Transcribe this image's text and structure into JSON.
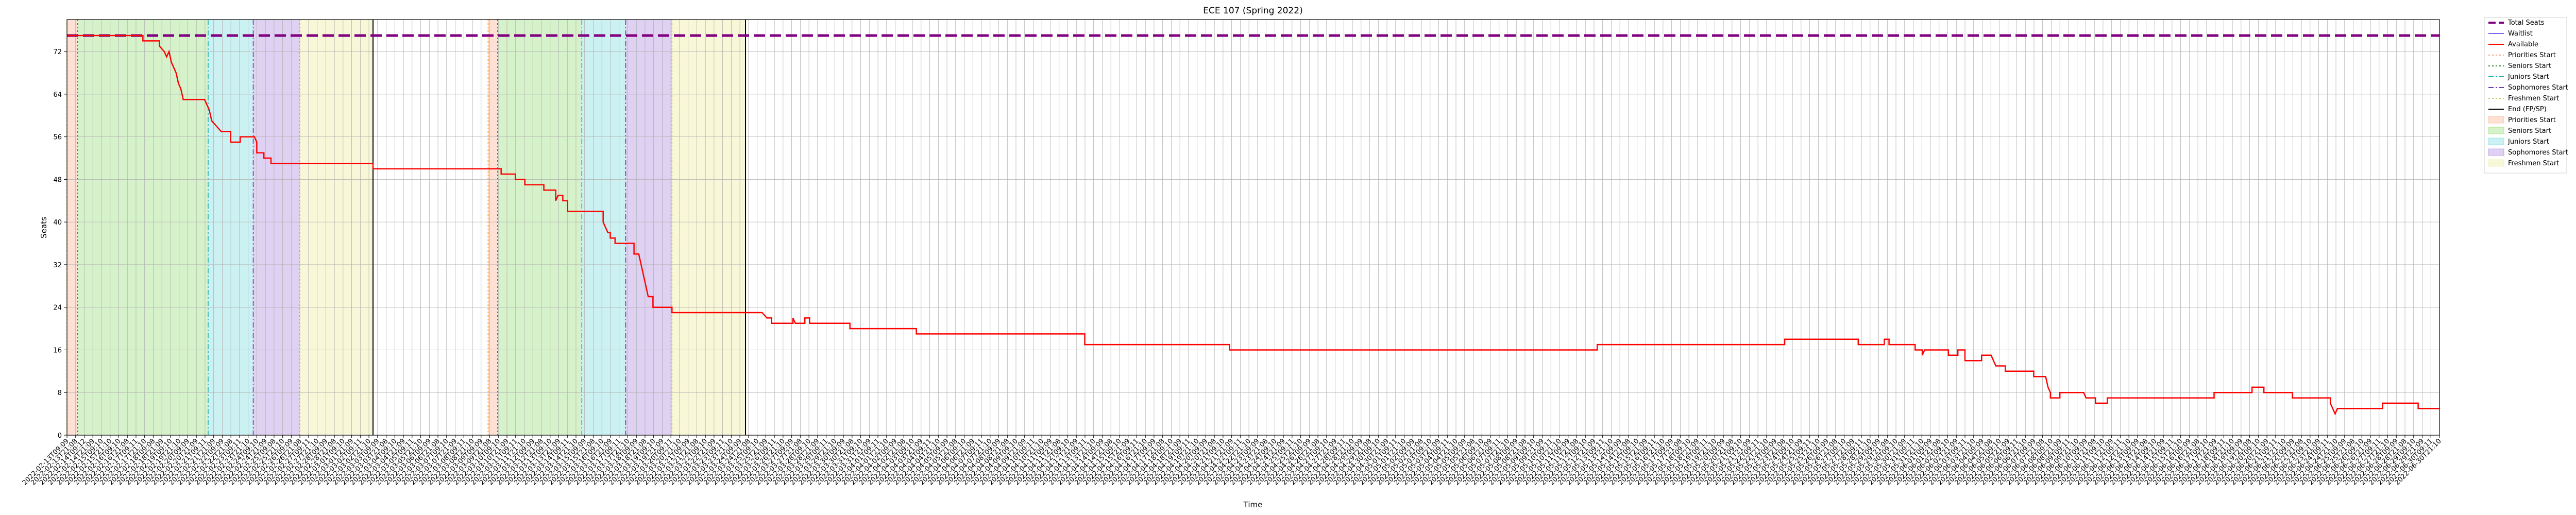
{
  "chart_data": {
    "type": "line",
    "title": "ECE 107 (Spring 2022)",
    "xlabel": "Time",
    "ylabel": "Seats",
    "xlim": [
      0,
      100
    ],
    "ylim": [
      0,
      78
    ],
    "yticks": [
      0,
      8,
      16,
      24,
      32,
      40,
      48,
      56,
      64,
      72
    ],
    "grid": true,
    "legend_placement": "outside-top-right",
    "colors": {
      "total": "#800080",
      "waitlist": "#7b68ee",
      "available": "#ff0000",
      "priorities": "#ffa07a",
      "seniors": "#7fd85a",
      "juniors": "#5fd3d8",
      "sophomores": "#9b6fd8",
      "freshmen": "#e8e88a",
      "end": "#000000"
    },
    "legend": [
      {
        "label": "Total Seats",
        "kind": "line",
        "color": "#800080",
        "dash": "dashed"
      },
      {
        "label": "Waitlist",
        "kind": "line",
        "color": "#7b68ee",
        "dash": "solid"
      },
      {
        "label": "Available",
        "kind": "line",
        "color": "#ff0000",
        "dash": "solid"
      },
      {
        "label": "Priorities Start",
        "kind": "line",
        "color": "#ffa07a",
        "dash": "dotted"
      },
      {
        "label": "Seniors Start",
        "kind": "line",
        "color": "#2e8b2e",
        "dash": "dotted"
      },
      {
        "label": "Juniors Start",
        "kind": "line",
        "color": "#20b2aa",
        "dash": "dashdot"
      },
      {
        "label": "Sophomores Start",
        "kind": "line",
        "color": "#6a3db8",
        "dash": "dashdot"
      },
      {
        "label": "Freshmen Start",
        "kind": "line",
        "color": "#c8c86a",
        "dash": "dotted"
      },
      {
        "label": "End (FP/SP)",
        "kind": "line",
        "color": "#000000",
        "dash": "solid"
      },
      {
        "label": "Priorities Start",
        "kind": "patch",
        "color": "#ffa07a"
      },
      {
        "label": "Seniors Start",
        "kind": "patch",
        "color": "#7fd85a"
      },
      {
        "label": "Juniors Start",
        "kind": "patch",
        "color": "#5fd3d8"
      },
      {
        "label": "Sophomores Start",
        "kind": "patch",
        "color": "#9b6fd8"
      },
      {
        "label": "Freshmen Start",
        "kind": "patch",
        "color": "#e8e88a"
      }
    ],
    "period_spans": [
      {
        "phase": "priorities",
        "x0": 0.0,
        "x1": 0.45
      },
      {
        "phase": "seniors",
        "x0": 0.45,
        "x1": 5.95
      },
      {
        "phase": "juniors",
        "x0": 5.95,
        "x1": 7.85
      },
      {
        "phase": "sophomores",
        "x0": 7.85,
        "x1": 9.8
      },
      {
        "phase": "freshmen",
        "x0": 9.8,
        "x1": 12.9
      },
      {
        "phase": "priorities",
        "x0": 17.75,
        "x1": 18.15
      },
      {
        "phase": "seniors",
        "x0": 18.15,
        "x1": 21.7
      },
      {
        "phase": "juniors",
        "x0": 21.7,
        "x1": 23.55
      },
      {
        "phase": "sophomores",
        "x0": 23.55,
        "x1": 25.5
      },
      {
        "phase": "freshmen",
        "x0": 25.5,
        "x1": 28.6
      }
    ],
    "end_lines": [
      12.9,
      28.6
    ],
    "series": [
      {
        "name": "Total Seats",
        "values": [
          [
            0,
            75
          ],
          [
            100,
            75
          ]
        ]
      },
      {
        "name": "Available",
        "values": [
          [
            0,
            75
          ],
          [
            3.2,
            75
          ],
          [
            3.2,
            74
          ],
          [
            3.9,
            74
          ],
          [
            3.9,
            73
          ],
          [
            4.1,
            72
          ],
          [
            4.2,
            71
          ],
          [
            4.3,
            72
          ],
          [
            4.4,
            70
          ],
          [
            4.5,
            69
          ],
          [
            4.6,
            68
          ],
          [
            4.7,
            66
          ],
          [
            4.8,
            65
          ],
          [
            4.9,
            63
          ],
          [
            5.8,
            63
          ],
          [
            5.9,
            62
          ],
          [
            6.0,
            61
          ],
          [
            6.1,
            59
          ],
          [
            6.3,
            58
          ],
          [
            6.5,
            57
          ],
          [
            6.9,
            57
          ],
          [
            6.9,
            55
          ],
          [
            7.3,
            55
          ],
          [
            7.3,
            56
          ],
          [
            7.9,
            56
          ],
          [
            8.0,
            55
          ],
          [
            8.0,
            53
          ],
          [
            8.3,
            53
          ],
          [
            8.3,
            52
          ],
          [
            8.6,
            52
          ],
          [
            8.6,
            51
          ],
          [
            12.9,
            51
          ],
          [
            12.9,
            50
          ],
          [
            17.8,
            50
          ],
          [
            18.3,
            50
          ],
          [
            18.3,
            49
          ],
          [
            18.9,
            49
          ],
          [
            18.9,
            48
          ],
          [
            19.3,
            48
          ],
          [
            19.3,
            47
          ],
          [
            20.1,
            47
          ],
          [
            20.1,
            46
          ],
          [
            20.6,
            46
          ],
          [
            20.6,
            44
          ],
          [
            20.7,
            45
          ],
          [
            20.9,
            45
          ],
          [
            20.9,
            44
          ],
          [
            21.1,
            44
          ],
          [
            21.1,
            42
          ],
          [
            22.6,
            42
          ],
          [
            22.6,
            40
          ],
          [
            22.8,
            38
          ],
          [
            22.9,
            38
          ],
          [
            22.9,
            37
          ],
          [
            23.1,
            37
          ],
          [
            23.1,
            36
          ],
          [
            23.5,
            36
          ],
          [
            23.9,
            36
          ],
          [
            23.9,
            34
          ],
          [
            24.1,
            34
          ],
          [
            24.2,
            32
          ],
          [
            24.3,
            30
          ],
          [
            24.4,
            28
          ],
          [
            24.5,
            26
          ],
          [
            24.7,
            26
          ],
          [
            24.7,
            24
          ],
          [
            25.5,
            24
          ],
          [
            25.5,
            23
          ],
          [
            29.3,
            23
          ],
          [
            29.5,
            22
          ],
          [
            29.7,
            22
          ],
          [
            29.7,
            21
          ],
          [
            30.6,
            21
          ],
          [
            30.6,
            22
          ],
          [
            30.7,
            21
          ],
          [
            31.1,
            21
          ],
          [
            31.1,
            22
          ],
          [
            31.3,
            22
          ],
          [
            31.3,
            21
          ],
          [
            33.0,
            21
          ],
          [
            33.0,
            20
          ],
          [
            35.8,
            20
          ],
          [
            35.8,
            19
          ],
          [
            42.9,
            19
          ],
          [
            42.9,
            17
          ],
          [
            49.0,
            17
          ],
          [
            49.0,
            16
          ],
          [
            64.5,
            16
          ],
          [
            64.5,
            17
          ],
          [
            72.4,
            17
          ],
          [
            72.4,
            18
          ],
          [
            75.5,
            18
          ],
          [
            75.5,
            17
          ],
          [
            76.6,
            17
          ],
          [
            76.6,
            18
          ],
          [
            76.8,
            18
          ],
          [
            76.8,
            17
          ],
          [
            77.9,
            17
          ],
          [
            77.9,
            16
          ],
          [
            78.2,
            16
          ],
          [
            78.2,
            15
          ],
          [
            78.3,
            16
          ],
          [
            79.3,
            16
          ],
          [
            79.3,
            15
          ],
          [
            79.7,
            15
          ],
          [
            79.7,
            16
          ],
          [
            80.0,
            16
          ],
          [
            80.0,
            14
          ],
          [
            80.7,
            14
          ],
          [
            80.7,
            15
          ],
          [
            81.1,
            15
          ],
          [
            81.2,
            14
          ],
          [
            81.3,
            13
          ],
          [
            81.7,
            13
          ],
          [
            81.7,
            12
          ],
          [
            82.9,
            12
          ],
          [
            82.9,
            11
          ],
          [
            83.4,
            11
          ],
          [
            83.5,
            9
          ],
          [
            83.6,
            8
          ],
          [
            83.6,
            7
          ],
          [
            84.0,
            7
          ],
          [
            84.0,
            8
          ],
          [
            85.0,
            8
          ],
          [
            85.1,
            7
          ],
          [
            85.5,
            7
          ],
          [
            85.5,
            6
          ],
          [
            86.0,
            6
          ],
          [
            86.0,
            7
          ],
          [
            90.5,
            7
          ],
          [
            90.5,
            8
          ],
          [
            92.1,
            8
          ],
          [
            92.1,
            9
          ],
          [
            92.6,
            9
          ],
          [
            92.6,
            8
          ],
          [
            93.8,
            8
          ],
          [
            93.8,
            7
          ],
          [
            95.4,
            7
          ],
          [
            95.4,
            6
          ],
          [
            95.5,
            5
          ],
          [
            95.6,
            4
          ],
          [
            95.7,
            5
          ],
          [
            97.6,
            5
          ],
          [
            97.6,
            6
          ],
          [
            99.1,
            6
          ],
          [
            99.1,
            5
          ],
          [
            100,
            5
          ]
        ]
      }
    ],
    "x_tick_labels": [
      "2022-02-13T09:09",
      "2022-02-13T21:08",
      "2022-02-14T09:12",
      "2022-02-14T21:09",
      "2022-02-15T09:10",
      "2022-02-15T21:10",
      "2022-02-16T09:10",
      "2022-02-16T21:08",
      "2022-02-17T09:11",
      "2022-02-17T21:10",
      "2022-02-18T09:08",
      "2022-02-18T21:09",
      "2022-02-19T09:10",
      "2022-02-19T21:10",
      "2022-02-20T09:09",
      "2022-02-20T21:09",
      "2022-02-21T09:11",
      "2022-02-21T21:09",
      "2022-02-22T09:09",
      "2022-02-22T21:08",
      "2022-02-23T09:11",
      "2022-02-23T21:10",
      "2022-02-24T09:10",
      "2022-02-24T21:09",
      "2022-02-25T09:08",
      "2022-02-25T21:10",
      "2022-02-26T09:09",
      "2022-02-26T21:08",
      "2022-02-27T09:11",
      "2022-02-27T21:10",
      "2022-02-28T09:09",
      "2022-02-28T21:08",
      "2022-03-01T09:10",
      "2022-03-01T21:09",
      "2022-03-02T09:11",
      "2022-03-02T21:10",
      "2022-03-03T09:09",
      "2022-03-03T21:08",
      "2022-03-04T09:10",
      "2022-03-04T21:09",
      "2022-03-05T09:11",
      "2022-03-05T21:10",
      "2022-03-06T09:09",
      "2022-03-06T21:08",
      "2022-03-07T09:10",
      "2022-03-07T21:09",
      "2022-03-08T09:11",
      "2022-03-08T21:10",
      "2022-03-09T09:09",
      "2022-03-09T21:08",
      "2022-03-10T09:10",
      "2022-03-10T21:09",
      "2022-03-11T09:11",
      "2022-03-11T21:10",
      "2022-03-12T09:09",
      "2022-03-12T21:08",
      "2022-03-13T09:10",
      "2022-03-13T21:09",
      "2022-03-14T09:11",
      "2022-03-14T21:10",
      "2022-03-15T09:09",
      "2022-03-15T21:08",
      "2022-03-16T09:10",
      "2022-03-16T21:09",
      "2022-03-17T09:11",
      "2022-03-17T21:10",
      "2022-03-18T09:09",
      "2022-03-18T21:08",
      "2022-03-19T09:10",
      "2022-03-19T21:09",
      "2022-03-20T09:11",
      "2022-03-20T21:10",
      "2022-03-21T09:09",
      "2022-03-21T21:08",
      "2022-03-22T09:10",
      "2022-03-22T21:09",
      "2022-03-23T09:11",
      "2022-03-23T21:10",
      "2022-03-24T09:09",
      "2022-03-24T21:08",
      "2022-03-25T09:10",
      "2022-03-25T21:09",
      "2022-03-26T09:11",
      "2022-03-26T21:10",
      "2022-03-27T09:09",
      "2022-03-27T21:08",
      "2022-03-28T09:10",
      "2022-03-28T21:09",
      "2022-03-29T09:11",
      "2022-03-29T21:10",
      "2022-03-30T09:09",
      "2022-03-30T21:08",
      "2022-03-31T09:10",
      "2022-03-31T21:09",
      "2022-04-01T09:11",
      "2022-04-01T21:10",
      "2022-04-02T09:09",
      "2022-04-02T21:08",
      "2022-04-03T09:10",
      "2022-04-03T21:09",
      "2022-04-04T09:11",
      "2022-04-04T21:10",
      "2022-04-05T09:09",
      "2022-04-05T21:08",
      "2022-04-06T09:10",
      "2022-04-06T21:09",
      "2022-04-07T09:11",
      "2022-04-07T21:10",
      "2022-04-08T09:09",
      "2022-04-08T21:08",
      "2022-04-09T09:10",
      "2022-04-09T21:09",
      "2022-04-10T09:11",
      "2022-04-10T21:10",
      "2022-04-11T09:09",
      "2022-04-11T21:08",
      "2022-04-12T09:10",
      "2022-04-12T21:09",
      "2022-04-13T09:11",
      "2022-04-13T21:10",
      "2022-04-14T09:09",
      "2022-04-14T21:08",
      "2022-04-15T09:10",
      "2022-04-15T21:09",
      "2022-04-16T09:11",
      "2022-04-16T21:10",
      "2022-04-17T09:09",
      "2022-04-17T21:08",
      "2022-04-18T09:10",
      "2022-04-18T21:09",
      "2022-04-19T09:11",
      "2022-04-19T21:10",
      "2022-04-20T09:09",
      "2022-04-20T21:08",
      "2022-04-21T09:10",
      "2022-04-21T21:09",
      "2022-04-22T09:11",
      "2022-04-22T21:10",
      "2022-04-23T09:09",
      "2022-04-23T21:08",
      "2022-04-24T09:10",
      "2022-04-24T21:09",
      "2022-04-25T09:11",
      "2022-04-25T21:10",
      "2022-04-26T09:09",
      "2022-04-26T21:08",
      "2022-04-27T09:10",
      "2022-04-27T21:09",
      "2022-04-28T09:11",
      "2022-04-28T21:10",
      "2022-04-29T09:09",
      "2022-04-29T21:08",
      "2022-04-30T09:10",
      "2022-04-30T21:09",
      "2022-05-01T09:11",
      "2022-05-01T21:10",
      "2022-05-02T09:09",
      "2022-05-02T21:08",
      "2022-05-03T09:10",
      "2022-05-03T21:09",
      "2022-05-04T09:11",
      "2022-05-04T21:10",
      "2022-05-05T09:09",
      "2022-05-05T21:08",
      "2022-05-06T09:10",
      "2022-05-06T21:09",
      "2022-05-07T09:11",
      "2022-05-07T21:10",
      "2022-05-08T09:09",
      "2022-05-08T21:08",
      "2022-05-09T09:10",
      "2022-05-09T21:09",
      "2022-05-10T09:11",
      "2022-05-10T21:10",
      "2022-05-11T09:09",
      "2022-05-11T21:08",
      "2022-05-12T09:10",
      "2022-05-12T21:09",
      "2022-05-13T09:11",
      "2022-05-13T21:10",
      "2022-05-14T09:09",
      "2022-05-14T21:08",
      "2022-05-15T09:10",
      "2022-05-15T21:09",
      "2022-05-16T09:11",
      "2022-05-16T21:10",
      "2022-05-17T09:09",
      "2022-05-17T21:08",
      "2022-05-18T09:10",
      "2022-05-18T21:09",
      "2022-05-19T09:11",
      "2022-05-19T21:10",
      "2022-05-20T09:09",
      "2022-05-20T21:08",
      "2022-05-21T09:10",
      "2022-05-21T21:09",
      "2022-05-22T09:11",
      "2022-05-22T21:10",
      "2022-05-23T09:09",
      "2022-05-23T21:08",
      "2022-05-24T09:10",
      "2022-05-24T21:09",
      "2022-05-25T09:11",
      "2022-05-25T21:10",
      "2022-05-26T09:09",
      "2022-05-26T21:08",
      "2022-05-27T09:10",
      "2022-05-27T21:09",
      "2022-05-28T09:11",
      "2022-05-28T21:10",
      "2022-05-29T09:09",
      "2022-05-29T21:08",
      "2022-05-30T09:10",
      "2022-05-30T21:09",
      "2022-05-31T09:11",
      "2022-05-31T21:10",
      "2022-06-01T09:09",
      "2022-06-01T21:08",
      "2022-06-02T09:10",
      "2022-06-02T21:09",
      "2022-06-03T09:11",
      "2022-06-03T21:10",
      "2022-06-04T09:09",
      "2022-06-04T21:08",
      "2022-06-05T09:10",
      "2022-06-05T21:09",
      "2022-06-06T09:11",
      "2022-06-06T21:10",
      "2022-06-07T09:09",
      "2022-06-07T21:08",
      "2022-06-08T09:10",
      "2022-06-08T21:09",
      "2022-06-09T09:11",
      "2022-06-09T21:10",
      "2022-06-10T09:09",
      "2022-06-10T21:08",
      "2022-06-11T09:10",
      "2022-06-11T21:09",
      "2022-06-12T09:11",
      "2022-06-12T21:10",
      "2022-06-13T09:09",
      "2022-06-13T21:08",
      "2022-06-14T09:10",
      "2022-06-14T21:09",
      "2022-06-15T09:11",
      "2022-06-15T21:10",
      "2022-06-16T09:09",
      "2022-06-16T21:08",
      "2022-06-17T09:10",
      "2022-06-17T21:09",
      "2022-06-18T09:11",
      "2022-06-18T21:10",
      "2022-06-19T09:09",
      "2022-06-19T21:08",
      "2022-06-20T09:10",
      "2022-06-20T21:09",
      "2022-06-21T09:11",
      "2022-06-21T21:10",
      "2022-06-22T09:09",
      "2022-06-22T21:08",
      "2022-06-23T09:10",
      "2022-06-23T21:09",
      "2022-06-24T09:11",
      "2022-06-24T21:10",
      "2022-06-25T09:09",
      "2022-06-25T21:08",
      "2022-06-26T09:10",
      "2022-06-26T21:09",
      "2022-06-27T09:11",
      "2022-06-27T21:10",
      "2022-06-28T09:09",
      "2022-06-28T21:08",
      "2022-06-29T09:10",
      "2022-06-29T21:09",
      "2022-06-30T09:11",
      "2022-06-30T21:10"
    ]
  }
}
